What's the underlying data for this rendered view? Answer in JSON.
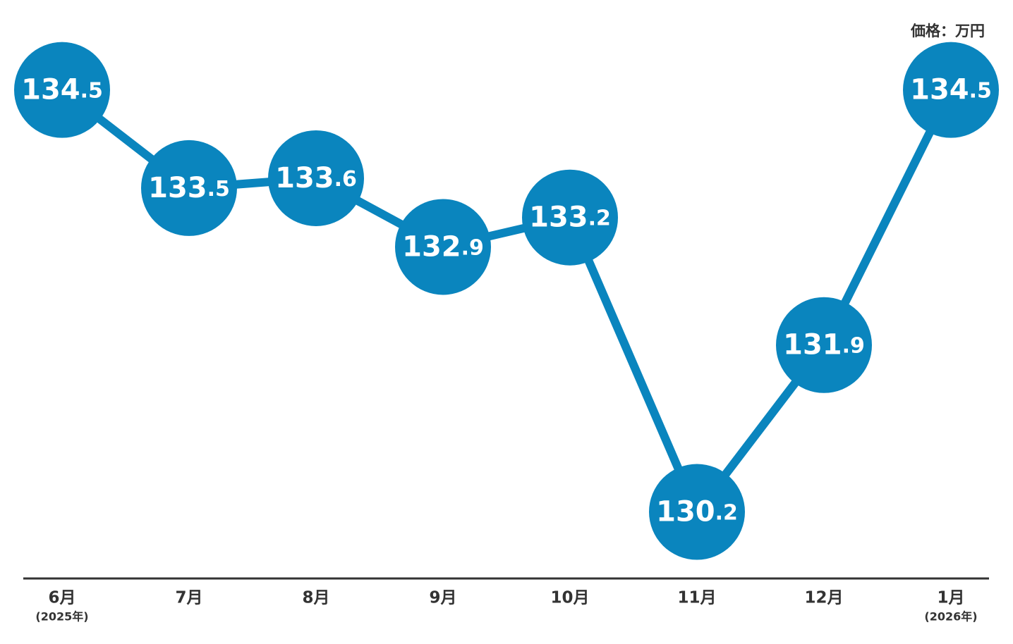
{
  "chart_data": {
    "type": "line",
    "y_label": "価格：万円",
    "categories": [
      "6月",
      "7月",
      "8月",
      "9月",
      "10月",
      "11月",
      "12月",
      "1月"
    ],
    "category_sublabels": [
      "(2025年)",
      null,
      null,
      null,
      null,
      null,
      null,
      "(2026年)"
    ],
    "values": [
      134.5,
      133.5,
      133.6,
      132.9,
      133.2,
      130.2,
      131.9,
      134.5
    ],
    "color": "#0a85be",
    "ylim": [
      129.5,
      135
    ]
  }
}
